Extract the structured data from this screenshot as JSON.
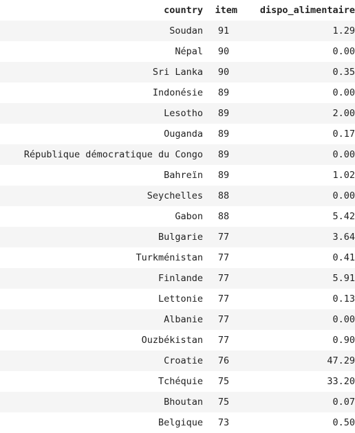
{
  "table": {
    "columns": [
      "country",
      "item",
      "dispo_alimentaire"
    ],
    "rows": [
      {
        "country": "Soudan",
        "item": "91",
        "dispo_alimentaire": "1.29"
      },
      {
        "country": "Népal",
        "item": "90",
        "dispo_alimentaire": "0.00"
      },
      {
        "country": "Sri Lanka",
        "item": "90",
        "dispo_alimentaire": "0.35"
      },
      {
        "country": "Indonésie",
        "item": "89",
        "dispo_alimentaire": "0.00"
      },
      {
        "country": "Lesotho",
        "item": "89",
        "dispo_alimentaire": "2.00"
      },
      {
        "country": "Ouganda",
        "item": "89",
        "dispo_alimentaire": "0.17"
      },
      {
        "country": "République démocratique du Congo",
        "item": "89",
        "dispo_alimentaire": "0.00"
      },
      {
        "country": "Bahreïn",
        "item": "89",
        "dispo_alimentaire": "1.02"
      },
      {
        "country": "Seychelles",
        "item": "88",
        "dispo_alimentaire": "0.00"
      },
      {
        "country": "Gabon",
        "item": "88",
        "dispo_alimentaire": "5.42"
      },
      {
        "country": "Bulgarie",
        "item": "77",
        "dispo_alimentaire": "3.64"
      },
      {
        "country": "Turkménistan",
        "item": "77",
        "dispo_alimentaire": "0.41"
      },
      {
        "country": "Finlande",
        "item": "77",
        "dispo_alimentaire": "5.91"
      },
      {
        "country": "Lettonie",
        "item": "77",
        "dispo_alimentaire": "0.13"
      },
      {
        "country": "Albanie",
        "item": "77",
        "dispo_alimentaire": "0.00"
      },
      {
        "country": "Ouzbékistan",
        "item": "77",
        "dispo_alimentaire": "0.90"
      },
      {
        "country": "Croatie",
        "item": "76",
        "dispo_alimentaire": "47.29"
      },
      {
        "country": "Tchéquie",
        "item": "75",
        "dispo_alimentaire": "33.20"
      },
      {
        "country": "Bhoutan",
        "item": "75",
        "dispo_alimentaire": "0.07"
      },
      {
        "country": "Belgique",
        "item": "73",
        "dispo_alimentaire": "0.50"
      }
    ]
  }
}
